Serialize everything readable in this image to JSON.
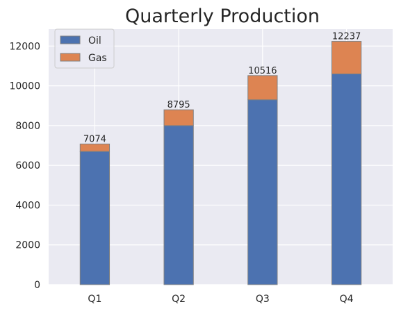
{
  "chart_data": {
    "type": "bar",
    "stacked": true,
    "title": "Quarterly Production",
    "xlabel": "",
    "ylabel": "",
    "categories": [
      "Q1",
      "Q2",
      "Q3",
      "Q4"
    ],
    "series": [
      {
        "name": "Oil",
        "values": [
          6700,
          8000,
          9300,
          10600
        ],
        "color": "#4c72b0"
      },
      {
        "name": "Gas",
        "values": [
          374,
          795,
          1216,
          1637
        ],
        "color": "#dd8452"
      }
    ],
    "totals": [
      7074,
      8795,
      10516,
      12237
    ],
    "total_labels": [
      "7074",
      "8795",
      "10516",
      "12237"
    ],
    "ylim": [
      0,
      12850
    ],
    "yticks": [
      0,
      2000,
      4000,
      6000,
      8000,
      10000,
      12000
    ],
    "ytick_labels": [
      "0",
      "2000",
      "4000",
      "6000",
      "8000",
      "10000",
      "12000"
    ],
    "grid": true,
    "legend": "top-left",
    "background_color": "#eaeaf2",
    "grid_color": "#ffffff",
    "bar_edge_color": "#808080"
  }
}
